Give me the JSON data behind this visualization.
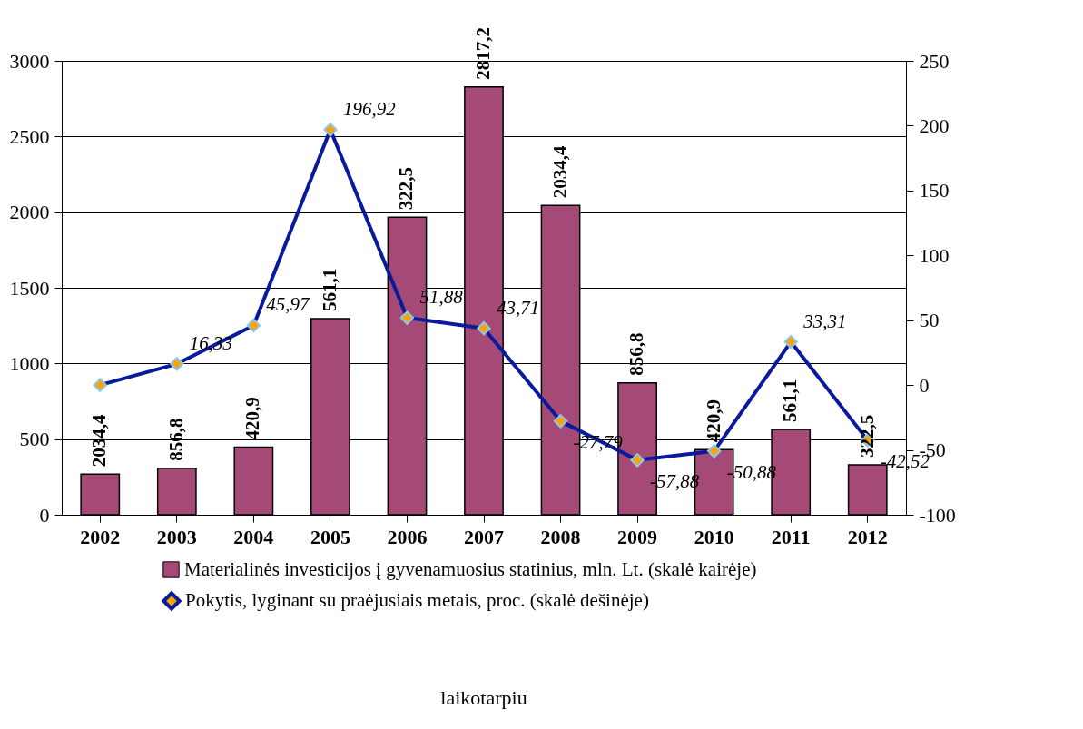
{
  "chart_data": {
    "type": "bar",
    "categories": [
      "2002",
      "2003",
      "2004",
      "2005",
      "2006",
      "2007",
      "2008",
      "2009",
      "2010",
      "2011",
      "2012"
    ],
    "series": [
      {
        "name": "Materialinės investicijos į gyvenamuosius statinius, mln. Lt. (skalė kairėje)",
        "type": "bar",
        "color": "#a54a76",
        "values": [
          268,
          307,
          447,
          1296,
          1966,
          2827,
          2045,
          872,
          430,
          564,
          330
        ]
      },
      {
        "name": "Pokytis, lyginant su praėjusiais metais, proc. (skalė dešinėje)",
        "type": "line",
        "axis": "y2",
        "color": "#0a1a9c",
        "marker": "diamond",
        "values": [
          0,
          16.33,
          45.97,
          196.92,
          51.88,
          43.71,
          -27.79,
          -57.88,
          -50.88,
          33.31,
          -42.52
        ],
        "value_labels": [
          null,
          "16,33",
          "45,97",
          "196,92",
          "51,88",
          "43,71",
          "-27,79",
          "-57,88",
          "-50,88",
          "33,31",
          "-42,52"
        ]
      }
    ],
    "ylim": [
      0,
      3000
    ],
    "yticks": [
      0,
      500,
      1000,
      1500,
      2000,
      2500,
      3000
    ],
    "y2lim": [
      -100,
      250
    ],
    "y2ticks": [
      -100,
      -50,
      0,
      50,
      100,
      150,
      200,
      250
    ],
    "grid": "y",
    "legend": "bottom",
    "annotations": [
      {
        "text": "2034,4",
        "x": "2002",
        "y": 268
      },
      {
        "text": "856,8",
        "x": "2003",
        "y": 307
      },
      {
        "text": "420,9",
        "x": "2004",
        "y": 447
      },
      {
        "text": "561,1",
        "x": "2005",
        "y": 1296
      },
      {
        "text": "322,5",
        "x": "2006",
        "y": 1966
      },
      {
        "text": "2817,2",
        "x": "2007",
        "y": 2827
      },
      {
        "text": "2034,4",
        "x": "2008",
        "y": 2045
      },
      {
        "text": "856,8",
        "x": "2009",
        "y": 872
      },
      {
        "text": "420,9",
        "x": "2010",
        "y": 430
      },
      {
        "text": "561,1",
        "x": "2011",
        "y": 564
      },
      {
        "text": "322,5",
        "x": "2012",
        "y": 330
      },
      "laikotarpiu"
    ]
  }
}
